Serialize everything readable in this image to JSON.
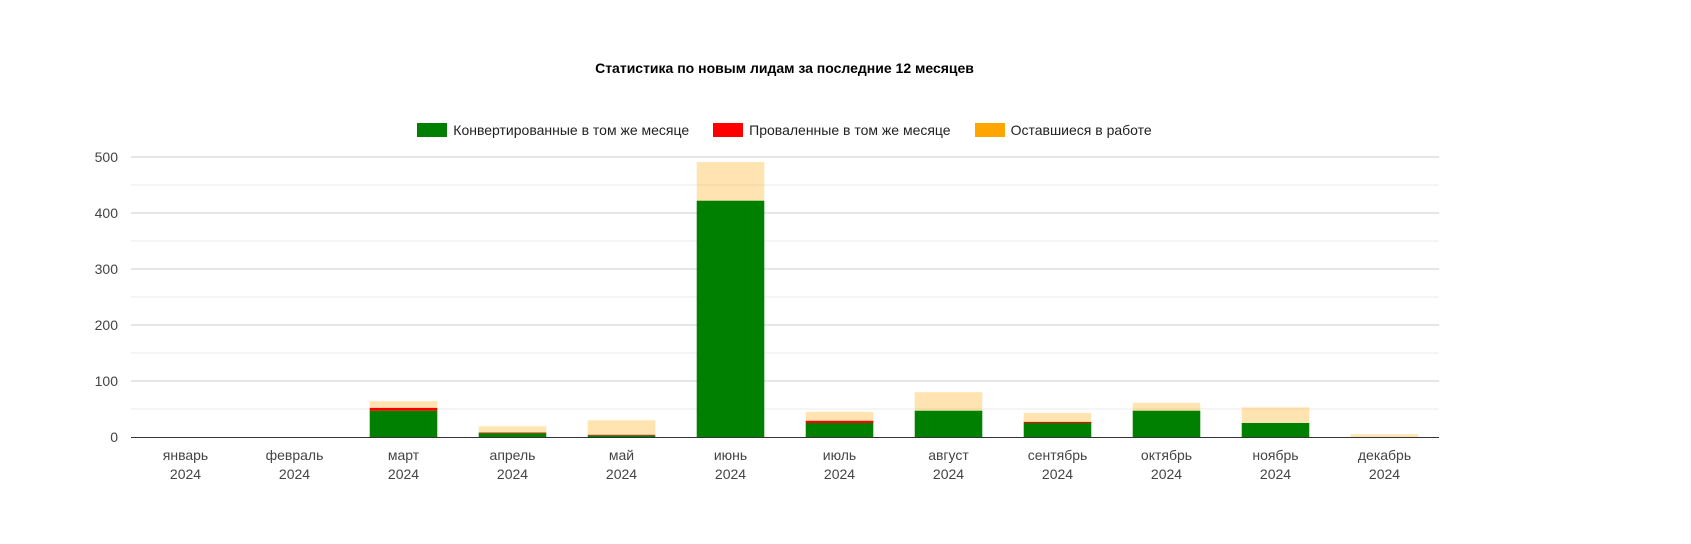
{
  "chart_data": {
    "type": "bar",
    "stacked": true,
    "title": "Статистика по новым лидам за последние 12 месяцев",
    "categories": [
      [
        "январь",
        "2024"
      ],
      [
        "февраль",
        "2024"
      ],
      [
        "март",
        "2024"
      ],
      [
        "апрель",
        "2024"
      ],
      [
        "май",
        "2024"
      ],
      [
        "июнь",
        "2024"
      ],
      [
        "июль",
        "2024"
      ],
      [
        "август",
        "2024"
      ],
      [
        "сентябрь",
        "2024"
      ],
      [
        "октябрь",
        "2024"
      ],
      [
        "ноябрь",
        "2024"
      ],
      [
        "декабрь",
        "2024"
      ]
    ],
    "series": [
      {
        "name": "Конвертированные в том же месяце",
        "color": "#008000",
        "values": [
          0,
          0,
          47,
          7,
          3,
          422,
          25,
          47,
          25,
          47,
          25,
          0
        ]
      },
      {
        "name": "Проваленные в том же месяце",
        "color": "#ff0000",
        "values": [
          0,
          0,
          5,
          1,
          1,
          0,
          4,
          0,
          2,
          0,
          0,
          0
        ]
      },
      {
        "name": "Оставшиеся в работе",
        "color": "#ffa500",
        "values": [
          0,
          0,
          12,
          11,
          26,
          69,
          16,
          33,
          16,
          14,
          28,
          5
        ]
      }
    ],
    "ylim": [
      0,
      500
    ],
    "yticks": [
      0,
      100,
      200,
      300,
      400,
      500
    ],
    "legend": "top",
    "grid": true
  }
}
